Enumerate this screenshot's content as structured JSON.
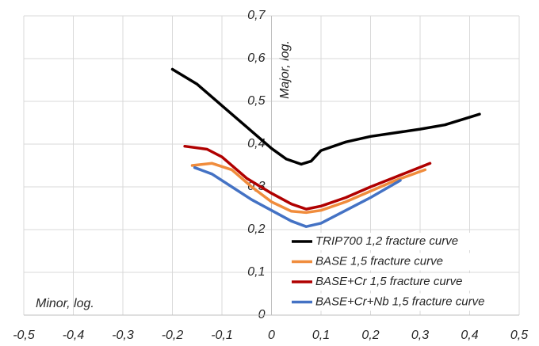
{
  "chart_data": {
    "type": "line",
    "x_label": "Minor, log.",
    "y_label": "Major, log.",
    "xlim": [
      -0.5,
      0.5
    ],
    "ylim": [
      0,
      0.7
    ],
    "xticks": [
      {
        "value": -0.5,
        "label": "-0,5"
      },
      {
        "value": -0.4,
        "label": "-0,4"
      },
      {
        "value": -0.3,
        "label": "-0,3"
      },
      {
        "value": -0.2,
        "label": "-0,2"
      },
      {
        "value": -0.1,
        "label": "-0,1"
      },
      0,
      {
        "value": 0.1,
        "label": "0,1"
      },
      {
        "value": 0.2,
        "label": "0,2"
      },
      {
        "value": 0.3,
        "label": "0,3"
      },
      {
        "value": 0.4,
        "label": "0,4"
      },
      {
        "value": 0.5,
        "label": "0,5"
      }
    ],
    "yticks": [
      0,
      {
        "value": 0.1,
        "label": "0,1"
      },
      {
        "value": 0.2,
        "label": "0,2"
      },
      {
        "value": 0.3,
        "label": "0,3"
      },
      {
        "value": 0.4,
        "label": "0,4"
      },
      {
        "value": 0.5,
        "label": "0,5"
      },
      {
        "value": 0.6,
        "label": "0,6"
      },
      {
        "value": 0.7,
        "label": "0,7"
      }
    ],
    "grid": true,
    "legend": "lower right",
    "series": [
      {
        "name": "TRIP700 1,2 fracture curve",
        "color": "#000000",
        "x": [
          -0.2,
          -0.15,
          -0.1,
          -0.05,
          0,
          0.03,
          0.06,
          0.08,
          0.1,
          0.15,
          0.2,
          0.3,
          0.35,
          0.42
        ],
        "values": [
          0.575,
          0.54,
          0.49,
          0.44,
          0.39,
          0.365,
          0.353,
          0.36,
          0.385,
          0.405,
          0.418,
          0.435,
          0.445,
          0.47
        ]
      },
      {
        "name": "BASE 1,5 fracture curve",
        "color": "#f08c3c",
        "x": [
          -0.16,
          -0.12,
          -0.08,
          -0.04,
          0,
          0.04,
          0.07,
          0.1,
          0.15,
          0.2,
          0.25,
          0.31
        ],
        "values": [
          0.35,
          0.355,
          0.34,
          0.3,
          0.265,
          0.243,
          0.24,
          0.245,
          0.265,
          0.29,
          0.315,
          0.34
        ]
      },
      {
        "name": "BASE+Cr 1,5 fracture curve",
        "color": "#b00000",
        "x": [
          -0.175,
          -0.13,
          -0.1,
          -0.05,
          0,
          0.04,
          0.07,
          0.1,
          0.15,
          0.2,
          0.25,
          0.32
        ],
        "values": [
          0.395,
          0.388,
          0.37,
          0.32,
          0.285,
          0.26,
          0.248,
          0.255,
          0.275,
          0.3,
          0.323,
          0.355
        ]
      },
      {
        "name": "BASE+Cr+Nb 1,5 fracture curve",
        "color": "#4472c4",
        "x": [
          -0.155,
          -0.12,
          -0.08,
          -0.04,
          0,
          0.04,
          0.07,
          0.1,
          0.15,
          0.2,
          0.26
        ],
        "values": [
          0.345,
          0.33,
          0.3,
          0.27,
          0.245,
          0.22,
          0.207,
          0.215,
          0.245,
          0.275,
          0.315
        ]
      }
    ]
  }
}
